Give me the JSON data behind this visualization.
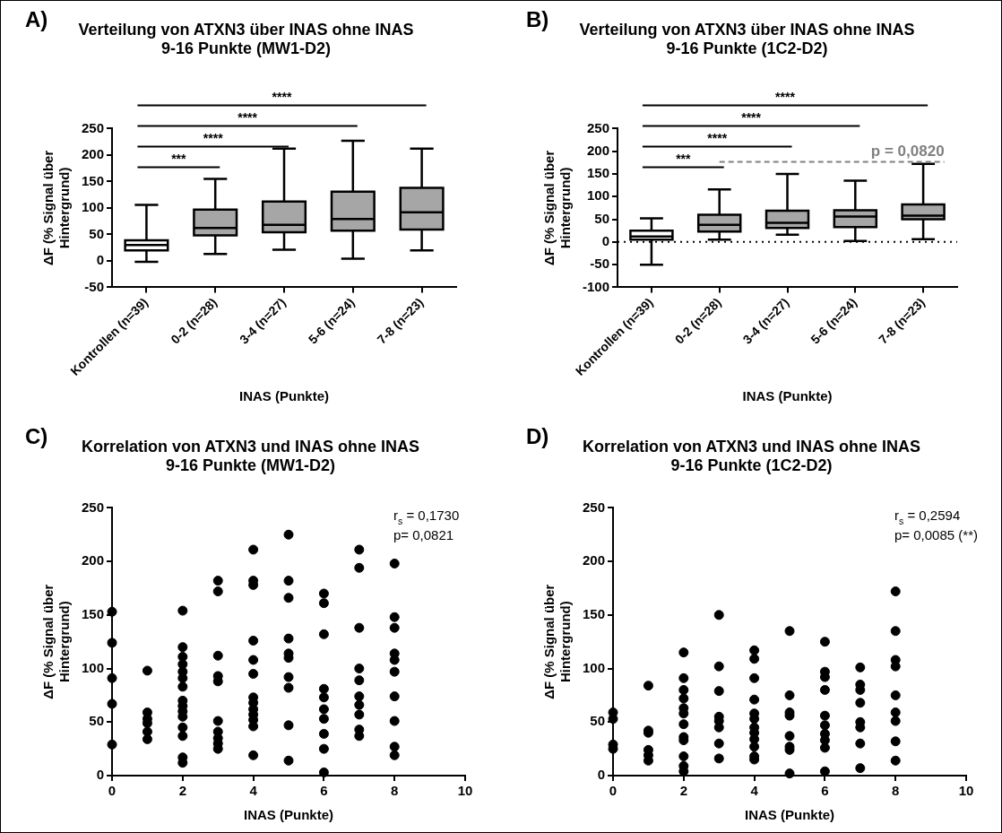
{
  "chart_data": [
    {
      "type": "box",
      "title": "Verteilung von ATXN3 über INAS ohne INAS 9-16 Punkte (MW1-D2)",
      "xlabel": "INAS (Punkte)",
      "ylabel": "ΔF (% Signal über Hintergrund)",
      "categories": [
        "Kontrollen (n=39)",
        "0-2 (n=28)",
        "3-4 (n=27)",
        "5-6 (n=24)",
        "7-8 (n=23)"
      ],
      "colors": [
        "#ffffff",
        "#a6a6a6",
        "#a6a6a6",
        "#a6a6a6",
        "#a6a6a6"
      ],
      "boxes": [
        {
          "low": -2,
          "q1": 20,
          "median": 30,
          "q3": 39,
          "high": 106
        },
        {
          "low": 13,
          "q1": 48,
          "median": 62,
          "q3": 97,
          "high": 155
        },
        {
          "low": 21,
          "q1": 54,
          "median": 68,
          "q3": 112,
          "high": 212
        },
        {
          "low": 4,
          "q1": 57,
          "median": 79,
          "q3": 131,
          "high": 227
        },
        {
          "low": 20,
          "q1": 59,
          "median": 92,
          "q3": 138,
          "high": 212
        }
      ],
      "ylim": [
        -50,
        250
      ],
      "yticks": [
        -50,
        0,
        50,
        100,
        150,
        200,
        250
      ],
      "annotations": [
        "A)",
        "***",
        "****",
        "****",
        "****"
      ]
    },
    {
      "type": "box",
      "title": "Verteilung von ATXN3 über INAS ohne INAS 9-16 Punkte (1C2-D2)",
      "xlabel": "INAS (Punkte)",
      "ylabel": "ΔF (% Signal über Hintergrund)",
      "categories": [
        "Kontrollen (n=39)",
        "0-2 (n=28)",
        "3-4 (n=27)",
        "5-6 (n=24)",
        "7-8 (n=23)"
      ],
      "colors": [
        "#ffffff",
        "#a6a6a6",
        "#a6a6a6",
        "#a6a6a6",
        "#a6a6a6"
      ],
      "boxes": [
        {
          "low": -50,
          "q1": 5,
          "median": 12,
          "q3": 25,
          "high": 52
        },
        {
          "low": 5,
          "q1": 23,
          "median": 38,
          "q3": 60,
          "high": 116
        },
        {
          "low": 16,
          "q1": 31,
          "median": 42,
          "q3": 69,
          "high": 150
        },
        {
          "low": 2,
          "q1": 33,
          "median": 56,
          "q3": 70,
          "high": 135
        },
        {
          "low": 6,
          "q1": 50,
          "median": 58,
          "q3": 83,
          "high": 172
        }
      ],
      "ylim": [
        -100,
        250
      ],
      "yticks": [
        -100,
        -50,
        0,
        50,
        100,
        150,
        200,
        250
      ],
      "ref_lines": [
        {
          "axis": "y",
          "value": 0,
          "line_style": "dotted"
        }
      ],
      "annotations": [
        "B)",
        "***",
        "****",
        "****",
        "****",
        "p = 0,0820"
      ]
    },
    {
      "type": "scatter",
      "title": "Korrelation von ATXN3 und INAS ohne INAS 9-16 Punkte (MW1-D2)",
      "xlabel": "INAS (Punkte)",
      "ylabel": "ΔF (% Signal über Hintergrund)",
      "color": "#000000",
      "marker": "circle",
      "x": [
        0,
        0,
        0,
        0,
        0,
        1,
        1,
        1,
        1,
        1,
        1,
        2,
        2,
        2,
        2,
        2,
        2,
        2,
        2,
        2,
        2,
        2,
        2,
        2,
        2,
        2,
        3,
        3,
        3,
        3,
        3,
        3,
        3,
        3,
        3,
        3,
        4,
        4,
        4,
        4,
        4,
        4,
        4,
        4,
        4,
        4,
        4,
        4,
        4,
        5,
        5,
        5,
        5,
        5,
        5,
        5,
        5,
        5,
        5,
        6,
        6,
        6,
        6,
        6,
        6,
        6,
        6,
        6,
        6,
        7,
        7,
        7,
        7,
        7,
        7,
        7,
        7,
        7,
        7,
        8,
        8,
        8,
        8,
        8,
        8,
        8,
        8,
        8,
        8
      ],
      "values": [
        153,
        124,
        91,
        67,
        29,
        98,
        59,
        53,
        49,
        41,
        34,
        154,
        120,
        111,
        104,
        97,
        91,
        83,
        70,
        65,
        60,
        55,
        45,
        37,
        17,
        12,
        182,
        172,
        112,
        93,
        88,
        51,
        41,
        35,
        30,
        25,
        211,
        182,
        178,
        126,
        108,
        95,
        73,
        68,
        62,
        57,
        52,
        46,
        19,
        225,
        182,
        166,
        128,
        114,
        110,
        92,
        82,
        47,
        14,
        170,
        161,
        132,
        81,
        73,
        62,
        53,
        39,
        25,
        3,
        211,
        194,
        138,
        100,
        89,
        74,
        66,
        57,
        43,
        37,
        198,
        148,
        138,
        114,
        108,
        97,
        74,
        51,
        27,
        19
      ],
      "xlim": [
        0,
        10
      ],
      "xticks": [
        0,
        2,
        4,
        6,
        8,
        10
      ],
      "ylim": [
        0,
        250
      ],
      "yticks": [
        0,
        50,
        100,
        150,
        200,
        250
      ],
      "annotations": [
        "C)",
        "r$_{s}$ = 0,1730",
        "p= 0,0821"
      ]
    },
    {
      "type": "scatter",
      "title": "Korrelation von ATXN3 und INAS ohne INAS 9-16 Punkte (1C2-D2)",
      "xlabel": "INAS (Punkte)",
      "ylabel": "ΔF (% Signal über Hintergrund)",
      "color": "#000000",
      "marker": "circle",
      "x": [
        0,
        0,
        0,
        0,
        1,
        1,
        1,
        1,
        1,
        1,
        2,
        2,
        2,
        2,
        2,
        2,
        2,
        2,
        2,
        2,
        2,
        2,
        3,
        3,
        3,
        3,
        3,
        3,
        3,
        3,
        4,
        4,
        4,
        4,
        4,
        4,
        4,
        4,
        4,
        4,
        4,
        4,
        5,
        5,
        5,
        5,
        5,
        5,
        5,
        5,
        6,
        6,
        6,
        6,
        6,
        6,
        6,
        6,
        6,
        6,
        7,
        7,
        7,
        7,
        7,
        7,
        7,
        7,
        8,
        8,
        8,
        8,
        8,
        8,
        8,
        8,
        8
      ],
      "values": [
        59,
        53,
        29,
        25,
        84,
        42,
        40,
        24,
        19,
        14,
        115,
        91,
        80,
        72,
        63,
        58,
        48,
        36,
        33,
        18,
        9,
        4,
        150,
        102,
        79,
        55,
        51,
        45,
        30,
        16,
        117,
        109,
        91,
        71,
        58,
        53,
        45,
        40,
        34,
        27,
        18,
        15,
        135,
        75,
        59,
        56,
        37,
        27,
        24,
        2,
        125,
        97,
        92,
        80,
        56,
        47,
        39,
        33,
        26,
        4,
        101,
        85,
        80,
        68,
        50,
        45,
        30,
        7,
        172,
        135,
        108,
        102,
        75,
        59,
        51,
        32,
        14
      ],
      "xlim": [
        0,
        10
      ],
      "xticks": [
        0,
        2,
        4,
        6,
        8,
        10
      ],
      "ylim": [
        0,
        250
      ],
      "yticks": [
        0,
        50,
        100,
        150,
        200,
        250
      ],
      "annotations": [
        "D)",
        "r$_{s}$ = 0,2594",
        "p= 0,0085 (**)"
      ]
    }
  ]
}
